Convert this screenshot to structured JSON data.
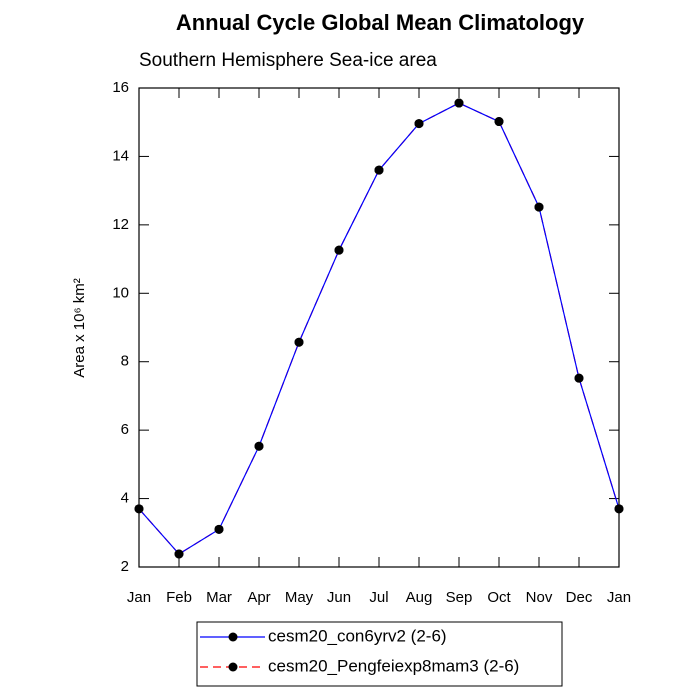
{
  "chart_data": {
    "type": "line",
    "title": "Annual Cycle Global Mean Climatology",
    "subtitle": "Southern Hemisphere Sea-ice area",
    "y_label": "Area x 10⁶ km²",
    "categories": [
      "Jan",
      "Feb",
      "Mar",
      "Apr",
      "May",
      "Jun",
      "Jul",
      "Aug",
      "Sep",
      "Oct",
      "Nov",
      "Dec",
      "Jan"
    ],
    "series": [
      {
        "name": "cesm20_con6yrv2 (2-6)",
        "color": "#0000ff",
        "dash": false,
        "values": [
          3.7,
          2.38,
          3.1,
          5.53,
          8.57,
          11.26,
          13.6,
          14.96,
          15.56,
          15.02,
          12.52,
          7.52,
          3.7
        ]
      },
      {
        "name": "cesm20_Pengfeiexp8mam3 (2-6)",
        "color": "#ff0000",
        "dash": true,
        "values": [
          3.7,
          2.38,
          3.1,
          5.53,
          8.57,
          11.26,
          13.6,
          14.96,
          15.56,
          15.02,
          12.52,
          7.52,
          3.7
        ]
      }
    ],
    "ylim": [
      2,
      16
    ],
    "yticks": [
      2,
      4,
      6,
      8,
      10,
      12,
      14,
      16
    ],
    "grid": false
  }
}
